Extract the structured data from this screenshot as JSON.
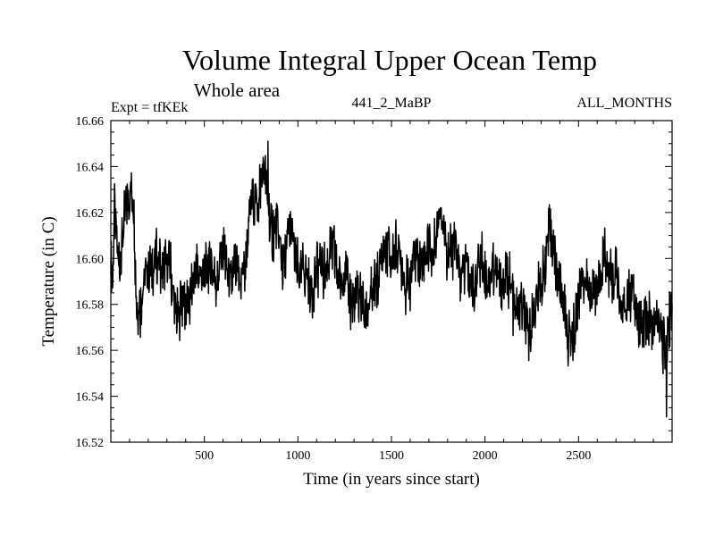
{
  "chart_data": {
    "type": "line",
    "title": "Volume Integral Upper Ocean Temp",
    "subtitle": "Whole area",
    "expt_label": "Expt = tfKEk",
    "run_label": "441_2_MaBP",
    "season_label": "ALL_MONTHS",
    "xlabel": "Time (in years since start)",
    "ylabel": "Temperature (in C)",
    "xlim": [
      0,
      3000
    ],
    "ylim": [
      16.52,
      16.66
    ],
    "grid": false,
    "x_ticks": [
      500,
      1000,
      1500,
      2000,
      2500
    ],
    "x_tick_labels": [
      "500",
      "1000",
      "1500",
      "2000",
      "2500"
    ],
    "y_ticks": [
      16.52,
      16.54,
      16.56,
      16.58,
      16.6,
      16.62,
      16.64,
      16.66
    ],
    "y_tick_labels": [
      "16.52",
      "16.54",
      "16.56",
      "16.58",
      "16.60",
      "16.62",
      "16.64",
      "16.66"
    ],
    "series": [
      {
        "color": "#000000",
        "x": [
          0,
          10,
          20,
          40,
          60,
          80,
          100,
          120,
          140,
          160,
          180,
          200,
          230,
          260,
          300,
          330,
          360,
          400,
          440,
          480,
          520,
          560,
          600,
          640,
          680,
          720,
          760,
          790,
          820,
          840,
          860,
          880,
          900,
          920,
          960,
          1000,
          1040,
          1080,
          1120,
          1160,
          1200,
          1240,
          1280,
          1320,
          1360,
          1400,
          1440,
          1480,
          1520,
          1560,
          1600,
          1640,
          1680,
          1720,
          1760,
          1780,
          1800,
          1840,
          1880,
          1920,
          1960,
          2000,
          2040,
          2080,
          2120,
          2160,
          2200,
          2240,
          2280,
          2320,
          2360,
          2380,
          2400,
          2440,
          2480,
          2520,
          2560,
          2600,
          2640,
          2680,
          2720,
          2760,
          2800,
          2840,
          2880,
          2920,
          2960,
          3000
        ],
        "y": [
          16.6,
          16.59,
          16.615,
          16.6,
          16.61,
          16.62,
          16.625,
          16.63,
          16.58,
          16.575,
          16.59,
          16.6,
          16.595,
          16.6,
          16.595,
          16.59,
          16.575,
          16.58,
          16.59,
          16.595,
          16.595,
          16.595,
          16.6,
          16.595,
          16.59,
          16.6,
          16.625,
          16.63,
          16.635,
          16.625,
          16.615,
          16.61,
          16.605,
          16.6,
          16.61,
          16.6,
          16.59,
          16.59,
          16.595,
          16.6,
          16.6,
          16.59,
          16.585,
          16.58,
          16.58,
          16.58,
          16.6,
          16.6,
          16.605,
          16.595,
          16.59,
          16.605,
          16.6,
          16.605,
          16.62,
          16.615,
          16.605,
          16.6,
          16.595,
          16.59,
          16.595,
          16.595,
          16.595,
          16.59,
          16.59,
          16.58,
          16.575,
          16.57,
          16.58,
          16.6,
          16.61,
          16.6,
          16.585,
          16.57,
          16.565,
          16.6,
          16.58,
          16.59,
          16.6,
          16.595,
          16.58,
          16.58,
          16.58,
          16.57,
          16.575,
          16.57,
          16.565,
          16.575
        ],
        "extremes": {
          "max": {
            "x": 840,
            "y": 16.651
          },
          "min": {
            "x": 2970,
            "y": 16.531
          }
        }
      }
    ]
  }
}
